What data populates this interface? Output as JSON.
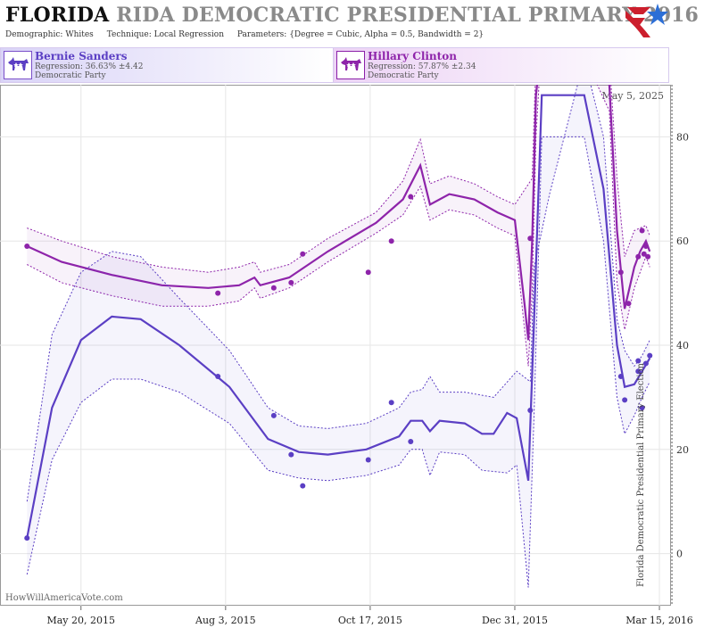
{
  "header": {
    "title_main": "FLORIDA",
    "title_rest": "RIDA DEMOCRATIC PRESIDENTIAL PRIMARY 2016",
    "demographic_label": "Demographic:",
    "demographic": "Whites",
    "technique_label": "Technique:",
    "technique": "Local Regression",
    "parameters_label": "Parameters:",
    "parameters": "{Degree = Cubic, Alpha = 0.5, Bandwidth = 2}"
  },
  "candidates": [
    {
      "name": "Bernie Sanders",
      "regression": "Regression: 36.63% ±4.42",
      "party": "Democratic Party",
      "color": "#5b3fc4"
    },
    {
      "name": "Hillary Clinton",
      "regression": "Regression: 57.87% ±2.34",
      "party": "Democratic Party",
      "color": "#8e24aa"
    }
  ],
  "watermark": "HowWillAmericaVote.com",
  "annotations": {
    "today_label": "May 5, 2025",
    "election_label": "Florida Democratic Presidential Primary Election"
  },
  "chart_data": {
    "type": "line",
    "x_tick_labels": [
      "May 20, 2015",
      "Aug 3, 2015",
      "Oct 17, 2015",
      "Dec 31, 2015",
      "Mar 15, 2016"
    ],
    "x_ticks": [
      "2015-05-20",
      "2015-08-03",
      "2015-10-17",
      "2015-12-31",
      "2016-03-15"
    ],
    "xlim": [
      "2015-04-08",
      "2016-03-21"
    ],
    "ylim": [
      -10,
      90
    ],
    "y_ticks": [
      0,
      20,
      40,
      60,
      80
    ],
    "grid": true,
    "series": [
      {
        "name": "Hillary Clinton",
        "color": "#8e24aa",
        "line": [
          [
            "2015-04-22",
            59
          ],
          [
            "2015-05-10",
            56
          ],
          [
            "2015-06-05",
            53.5
          ],
          [
            "2015-07-01",
            51.5
          ],
          [
            "2015-07-25",
            51
          ],
          [
            "2015-08-10",
            51.5
          ],
          [
            "2015-08-18",
            53
          ],
          [
            "2015-08-21",
            51.5
          ],
          [
            "2015-09-05",
            53
          ],
          [
            "2015-09-25",
            58
          ],
          [
            "2015-10-20",
            63.5
          ],
          [
            "2015-11-03",
            68
          ],
          [
            "2015-11-12",
            74.5
          ],
          [
            "2015-11-17",
            67
          ],
          [
            "2015-11-27",
            69
          ],
          [
            "2015-12-10",
            68
          ],
          [
            "2015-12-22",
            65.5
          ],
          [
            "2015-12-31",
            64
          ],
          [
            "2016-01-05",
            48
          ],
          [
            "2016-01-07",
            41
          ],
          [
            "2016-01-09",
            60
          ],
          [
            "2016-01-11",
            88
          ],
          [
            "2016-01-13",
            95
          ],
          [
            "2016-02-08",
            95
          ],
          [
            "2016-02-18",
            90
          ],
          [
            "2016-02-22",
            62
          ],
          [
            "2016-02-26",
            47
          ],
          [
            "2016-03-02",
            55
          ],
          [
            "2016-03-05",
            58
          ],
          [
            "2016-03-08",
            60
          ],
          [
            "2016-03-10",
            58
          ]
        ],
        "upper": [
          [
            "2015-04-22",
            62.5
          ],
          [
            "2015-05-10",
            60
          ],
          [
            "2015-06-05",
            57
          ],
          [
            "2015-07-01",
            55
          ],
          [
            "2015-07-25",
            54
          ],
          [
            "2015-08-10",
            55
          ],
          [
            "2015-08-18",
            56
          ],
          [
            "2015-08-21",
            54
          ],
          [
            "2015-09-05",
            55.5
          ],
          [
            "2015-09-25",
            60.5
          ],
          [
            "2015-10-20",
            65.5
          ],
          [
            "2015-11-03",
            71.5
          ],
          [
            "2015-11-12",
            79.5
          ],
          [
            "2015-11-17",
            71
          ],
          [
            "2015-11-27",
            72.5
          ],
          [
            "2015-12-10",
            71
          ],
          [
            "2015-12-22",
            68.5
          ],
          [
            "2015-12-31",
            67
          ],
          [
            "2016-01-09",
            72
          ],
          [
            "2016-01-11",
            95
          ],
          [
            "2016-02-18",
            95
          ],
          [
            "2016-02-22",
            72
          ],
          [
            "2016-02-26",
            57
          ],
          [
            "2016-03-02",
            62
          ],
          [
            "2016-03-08",
            63
          ],
          [
            "2016-03-10",
            61
          ]
        ],
        "lower": [
          [
            "2015-04-22",
            55.5
          ],
          [
            "2015-05-10",
            52
          ],
          [
            "2015-06-05",
            49.5
          ],
          [
            "2015-07-01",
            47.5
          ],
          [
            "2015-07-25",
            47.5
          ],
          [
            "2015-08-10",
            48.5
          ],
          [
            "2015-08-18",
            51
          ],
          [
            "2015-08-21",
            49
          ],
          [
            "2015-09-05",
            51
          ],
          [
            "2015-09-25",
            56
          ],
          [
            "2015-10-20",
            61.5
          ],
          [
            "2015-11-03",
            65
          ],
          [
            "2015-11-12",
            70.5
          ],
          [
            "2015-11-17",
            64
          ],
          [
            "2015-11-27",
            66
          ],
          [
            "2015-12-10",
            65
          ],
          [
            "2015-12-22",
            62.5
          ],
          [
            "2015-12-31",
            61
          ],
          [
            "2016-01-07",
            36
          ],
          [
            "2016-01-09",
            50
          ],
          [
            "2016-01-11",
            80
          ],
          [
            "2016-01-13",
            93
          ],
          [
            "2016-02-08",
            93
          ],
          [
            "2016-02-18",
            85
          ],
          [
            "2016-02-22",
            52
          ],
          [
            "2016-02-26",
            43
          ],
          [
            "2016-03-02",
            51
          ],
          [
            "2016-03-08",
            57
          ],
          [
            "2016-03-10",
            55
          ]
        ],
        "points": [
          [
            "2015-04-22",
            59
          ],
          [
            "2015-07-30",
            50
          ],
          [
            "2015-08-28",
            51
          ],
          [
            "2015-09-06",
            52
          ],
          [
            "2015-09-12",
            57.5
          ],
          [
            "2015-10-16",
            54
          ],
          [
            "2015-10-28",
            60
          ],
          [
            "2015-11-07",
            68.5
          ],
          [
            "2016-01-08",
            60.5
          ],
          [
            "2016-02-24",
            54
          ],
          [
            "2016-02-28",
            48
          ],
          [
            "2016-03-04",
            57
          ],
          [
            "2016-03-06",
            62
          ],
          [
            "2016-03-07",
            57.5
          ],
          [
            "2016-03-08",
            59
          ],
          [
            "2016-03-09",
            57
          ]
        ]
      },
      {
        "name": "Bernie Sanders",
        "color": "#5b3fc4",
        "line": [
          [
            "2015-04-22",
            3
          ],
          [
            "2015-05-05",
            28
          ],
          [
            "2015-05-20",
            41
          ],
          [
            "2015-06-05",
            45.5
          ],
          [
            "2015-06-20",
            45
          ],
          [
            "2015-07-10",
            40
          ],
          [
            "2015-08-05",
            32
          ],
          [
            "2015-08-25",
            22
          ],
          [
            "2015-09-10",
            19.5
          ],
          [
            "2015-09-25",
            19
          ],
          [
            "2015-10-15",
            20
          ],
          [
            "2015-11-01",
            22.5
          ],
          [
            "2015-11-07",
            25.5
          ],
          [
            "2015-11-13",
            25.5
          ],
          [
            "2015-11-17",
            23.5
          ],
          [
            "2015-11-22",
            25.5
          ],
          [
            "2015-12-05",
            25
          ],
          [
            "2015-12-14",
            23
          ],
          [
            "2015-12-20",
            23
          ],
          [
            "2015-12-27",
            27
          ],
          [
            "2016-01-01",
            26
          ],
          [
            "2016-01-07",
            14
          ],
          [
            "2016-01-10",
            45
          ],
          [
            "2016-01-14",
            88
          ],
          [
            "2016-02-05",
            88
          ],
          [
            "2016-02-15",
            70
          ],
          [
            "2016-02-22",
            40
          ],
          [
            "2016-02-26",
            32
          ],
          [
            "2016-03-02",
            32.5
          ],
          [
            "2016-03-06",
            35
          ],
          [
            "2016-03-10",
            37.5
          ]
        ],
        "upper": [
          [
            "2015-04-22",
            10
          ],
          [
            "2015-05-05",
            42
          ],
          [
            "2015-05-20",
            54
          ],
          [
            "2015-06-05",
            58
          ],
          [
            "2015-06-20",
            57
          ],
          [
            "2015-07-10",
            49
          ],
          [
            "2015-08-05",
            39
          ],
          [
            "2015-08-25",
            28
          ],
          [
            "2015-09-10",
            24.5
          ],
          [
            "2015-09-25",
            24
          ],
          [
            "2015-10-15",
            25
          ],
          [
            "2015-11-01",
            28
          ],
          [
            "2015-11-07",
            31
          ],
          [
            "2015-11-13",
            31.5
          ],
          [
            "2015-11-17",
            34
          ],
          [
            "2015-11-22",
            31
          ],
          [
            "2015-12-05",
            31
          ],
          [
            "2015-12-20",
            30
          ],
          [
            "2016-01-01",
            35
          ],
          [
            "2016-01-08",
            33
          ],
          [
            "2016-01-10",
            55
          ],
          [
            "2016-01-18",
            69
          ],
          [
            "2016-02-05",
            95
          ],
          [
            "2016-02-15",
            80
          ],
          [
            "2016-02-22",
            45
          ],
          [
            "2016-02-26",
            39
          ],
          [
            "2016-03-02",
            36
          ],
          [
            "2016-03-06",
            38
          ],
          [
            "2016-03-10",
            41
          ]
        ],
        "lower": [
          [
            "2015-04-22",
            -4
          ],
          [
            "2015-05-05",
            18
          ],
          [
            "2015-05-20",
            29
          ],
          [
            "2015-06-05",
            33.5
          ],
          [
            "2015-06-20",
            33.5
          ],
          [
            "2015-07-10",
            31
          ],
          [
            "2015-08-05",
            25
          ],
          [
            "2015-08-25",
            16
          ],
          [
            "2015-09-10",
            14.5
          ],
          [
            "2015-09-25",
            14
          ],
          [
            "2015-10-15",
            15
          ],
          [
            "2015-11-01",
            17
          ],
          [
            "2015-11-07",
            20
          ],
          [
            "2015-11-13",
            20
          ],
          [
            "2015-11-17",
            15
          ],
          [
            "2015-11-22",
            19.5
          ],
          [
            "2015-12-05",
            19
          ],
          [
            "2015-12-14",
            16
          ],
          [
            "2015-12-27",
            15.5
          ],
          [
            "2016-01-01",
            17
          ],
          [
            "2016-01-07",
            -6.5
          ],
          [
            "2016-01-10",
            27
          ],
          [
            "2016-01-14",
            80
          ],
          [
            "2016-02-05",
            80
          ],
          [
            "2016-02-15",
            60
          ],
          [
            "2016-02-22",
            30
          ],
          [
            "2016-02-26",
            23
          ],
          [
            "2016-03-02",
            26.5
          ],
          [
            "2016-03-06",
            30
          ],
          [
            "2016-03-10",
            33
          ]
        ],
        "points": [
          [
            "2015-04-22",
            3
          ],
          [
            "2015-07-30",
            34
          ],
          [
            "2015-08-28",
            26.5
          ],
          [
            "2015-09-06",
            19
          ],
          [
            "2015-09-12",
            13
          ],
          [
            "2015-10-16",
            18
          ],
          [
            "2015-10-28",
            29
          ],
          [
            "2015-11-07",
            21.5
          ],
          [
            "2016-01-08",
            27.5
          ],
          [
            "2016-02-24",
            34
          ],
          [
            "2016-02-26",
            29.5
          ],
          [
            "2016-03-04",
            37
          ],
          [
            "2016-03-04",
            35
          ],
          [
            "2016-03-06",
            28
          ],
          [
            "2016-03-08",
            36.5
          ],
          [
            "2016-03-10",
            38
          ]
        ]
      }
    ]
  }
}
